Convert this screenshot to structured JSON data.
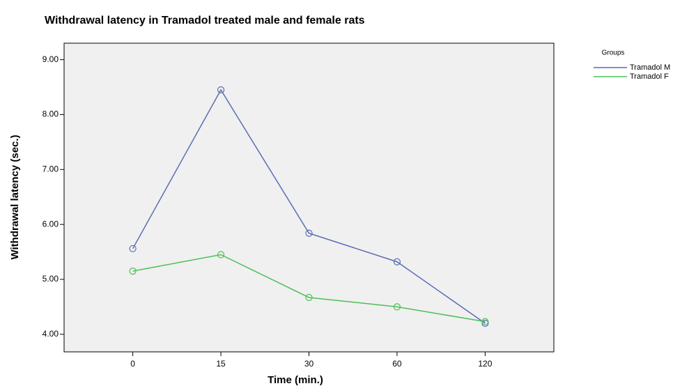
{
  "chart_data": {
    "type": "line",
    "title": "Withdrawal latency in Tramadol treated male and female rats",
    "x_label": "Time (min.)",
    "y_label": "Withdrawal latency (sec.)",
    "categories": [
      "0",
      "15",
      "30",
      "60",
      "120"
    ],
    "series": [
      {
        "name": "Tramadol M",
        "color": "#5a6db4",
        "values": [
          5.56,
          8.45,
          5.84,
          5.32,
          4.2
        ]
      },
      {
        "name": "Tramadol F",
        "color": "#4cbf57",
        "values": [
          5.15,
          5.45,
          4.67,
          4.5,
          4.23
        ]
      }
    ],
    "legend_title": "Groups",
    "legend": "right",
    "ylim": [
      3.68,
      9.3
    ],
    "yticks": [
      {
        "value": 4,
        "label": "4.00"
      },
      {
        "value": 5,
        "label": "5.00"
      },
      {
        "value": 6,
        "label": "6.00"
      },
      {
        "value": 7,
        "label": "7.00"
      },
      {
        "value": 8,
        "label": "8.00"
      },
      {
        "value": 9,
        "label": "9.00"
      }
    ]
  }
}
